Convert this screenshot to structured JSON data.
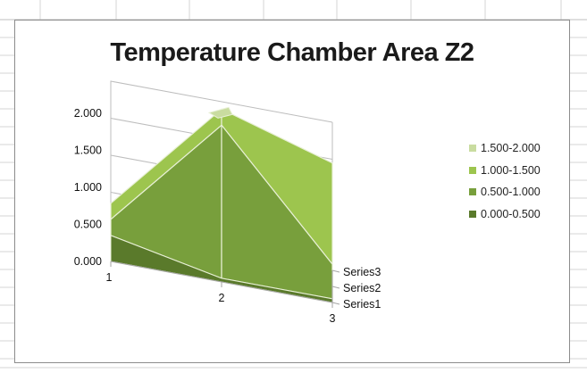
{
  "chart_data": {
    "type": "surface-3d",
    "title": "Temperature Chamber Area Z2",
    "categories": [
      "1",
      "2",
      "3"
    ],
    "series": [
      {
        "name": "Series1",
        "values": [
          0.35,
          0.05,
          0.05
        ]
      },
      {
        "name": "Series2",
        "values": [
          0.35,
          1.9,
          0.3
        ]
      },
      {
        "name": "Series3",
        "values": [
          0.35,
          1.9,
          1.45
        ]
      }
    ],
    "zlim": [
      0,
      2
    ],
    "z_ticks": [
      "0.000",
      "0.500",
      "1.000",
      "1.500",
      "2.000"
    ],
    "legend_position": "right",
    "legend": [
      {
        "label": "1.500-2.000",
        "color": "#c9dca0"
      },
      {
        "label": "1.000-1.500",
        "color": "#9dc54e"
      },
      {
        "label": "0.500-1.000",
        "color": "#789f3c"
      },
      {
        "label": "0.000-0.500",
        "color": "#5a7a2b"
      }
    ]
  }
}
